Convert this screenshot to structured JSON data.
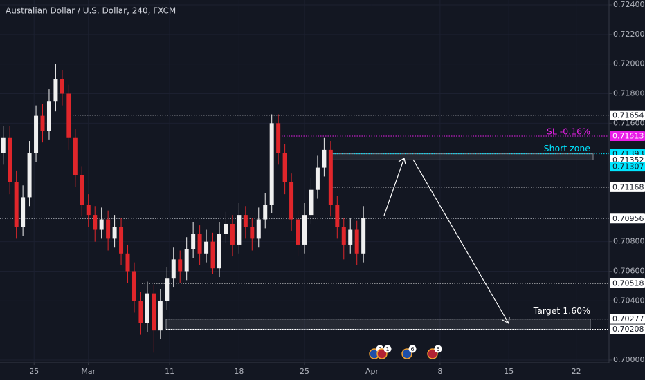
{
  "chart_data": {
    "type": "candlestick",
    "title": "Australian Dollar / U.S. Dollar, 240, FXCM",
    "x": [
      0.5,
      1.5,
      2.5,
      3.5,
      4.5,
      5.5,
      6.5,
      7.5,
      8.5,
      9.5,
      10.5,
      11.5,
      12.5,
      13.5,
      14.5,
      15.5,
      16.5,
      17.5,
      18.5,
      19.5,
      20.5,
      21.5,
      22.5,
      23.5,
      24.5,
      25.5,
      26.5,
      27.5,
      28.5,
      29.5,
      30.5,
      31.5,
      32.5,
      33.5,
      34.5,
      35.5,
      36.5,
      37.5,
      38.5,
      39.5,
      40.5,
      41.5,
      42.5,
      43.5,
      44.5,
      45.5,
      46.5,
      47.5,
      48.5,
      49.5,
      50.5,
      51.5,
      52.5,
      53.5,
      54.5,
      55.5
    ],
    "open": [
      0.714,
      0.715,
      0.712,
      0.709,
      0.711,
      0.714,
      0.7165,
      0.7155,
      0.7175,
      0.719,
      0.718,
      0.715,
      0.7125,
      0.7105,
      0.7098,
      0.7088,
      0.7095,
      0.7082,
      0.709,
      0.7072,
      0.706,
      0.704,
      0.7025,
      0.7045,
      0.702,
      0.704,
      0.7055,
      0.7068,
      0.706,
      0.7075,
      0.7085,
      0.7072,
      0.708,
      0.7062,
      0.7085,
      0.7092,
      0.7078,
      0.7098,
      0.709,
      0.7082,
      0.7095,
      0.7105,
      0.716,
      0.714,
      0.712,
      0.7095,
      0.7078,
      0.7098,
      0.7115,
      0.713,
      0.7142,
      0.7105,
      0.709,
      0.7078,
      0.7088,
      0.7072
    ],
    "high": [
      0.7158,
      0.7158,
      0.7128,
      0.7118,
      0.7148,
      0.7172,
      0.7173,
      0.7183,
      0.72,
      0.7196,
      0.7186,
      0.7156,
      0.7131,
      0.7112,
      0.7104,
      0.7103,
      0.7101,
      0.7098,
      0.7096,
      0.7078,
      0.7066,
      0.7046,
      0.7053,
      0.7051,
      0.7048,
      0.7063,
      0.7076,
      0.7074,
      0.7083,
      0.7093,
      0.7091,
      0.7088,
      0.7086,
      0.7093,
      0.71,
      0.7098,
      0.7106,
      0.7104,
      0.7096,
      0.7103,
      0.7113,
      0.7166,
      0.7166,
      0.7146,
      0.7126,
      0.7101,
      0.7106,
      0.7123,
      0.7138,
      0.715,
      0.7148,
      0.7111,
      0.7096,
      0.7096,
      0.7094,
      0.7104
    ],
    "low": [
      0.7132,
      0.7112,
      0.7082,
      0.7084,
      0.7104,
      0.7134,
      0.7147,
      0.7149,
      0.7168,
      0.7172,
      0.7142,
      0.7117,
      0.7097,
      0.709,
      0.708,
      0.7082,
      0.7074,
      0.7076,
      0.7064,
      0.7052,
      0.7032,
      0.7017,
      0.7019,
      0.7005,
      0.7014,
      0.7034,
      0.7049,
      0.7052,
      0.7054,
      0.7069,
      0.7064,
      0.7066,
      0.7058,
      0.7056,
      0.7079,
      0.707,
      0.7072,
      0.7082,
      0.7074,
      0.7076,
      0.7089,
      0.7099,
      0.7132,
      0.7112,
      0.7087,
      0.707,
      0.7072,
      0.7092,
      0.7109,
      0.7124,
      0.7097,
      0.7082,
      0.7068,
      0.7072,
      0.7064,
      0.7066
    ],
    "close": [
      0.715,
      0.712,
      0.709,
      0.711,
      0.714,
      0.7165,
      0.7155,
      0.7175,
      0.719,
      0.718,
      0.715,
      0.7125,
      0.7105,
      0.7098,
      0.7088,
      0.7095,
      0.7082,
      0.709,
      0.7072,
      0.706,
      0.704,
      0.7025,
      0.7045,
      0.702,
      0.704,
      0.7055,
      0.7068,
      0.706,
      0.7075,
      0.7085,
      0.7072,
      0.708,
      0.7062,
      0.7085,
      0.7092,
      0.7078,
      0.7098,
      0.709,
      0.7082,
      0.7095,
      0.7105,
      0.716,
      0.714,
      0.712,
      0.7095,
      0.7078,
      0.7098,
      0.7115,
      0.713,
      0.7142,
      0.7105,
      0.709,
      0.7078,
      0.7088,
      0.7072,
      0.7096
    ],
    "up_color": "#f0f0f0",
    "down_color": "#e0262b",
    "xlim": [
      0,
      93
    ],
    "xticks": [
      {
        "value": 5.2,
        "label": "25"
      },
      {
        "value": 13.5,
        "label": "Mar"
      },
      {
        "value": 25.9,
        "label": "11"
      },
      {
        "value": 36.5,
        "label": "18"
      },
      {
        "value": 46.5,
        "label": "25"
      },
      {
        "value": 56.8,
        "label": "Apr"
      },
      {
        "value": 67.2,
        "label": "8"
      },
      {
        "value": 77.7,
        "label": "15"
      },
      {
        "value": 88,
        "label": "22"
      }
    ],
    "ylim": [
      0.7,
      0.724
    ],
    "yticks": [
      {
        "value": 0.724,
        "label": "0.72400"
      },
      {
        "value": 0.722,
        "label": "0.72200"
      },
      {
        "value": 0.72,
        "label": "0.72000"
      },
      {
        "value": 0.718,
        "label": "0.71800"
      },
      {
        "value": 0.716,
        "label": "0.71600"
      },
      {
        "value": 0.708,
        "label": "0.70800"
      },
      {
        "value": 0.706,
        "label": "0.70600"
      },
      {
        "value": 0.704,
        "label": "0.70400"
      },
      {
        "value": 0.7,
        "label": "0.70000"
      }
    ],
    "grid": true,
    "levels": [
      {
        "value": 0.71654,
        "color": "#ffffff"
      },
      {
        "value": 0.71513,
        "color": "#e91ee8"
      },
      {
        "value": 0.71393,
        "color": "#00e5ff"
      },
      {
        "value": 0.71352,
        "color": "#00e5ff"
      },
      {
        "value": 0.71307,
        "color": "#00e5ff"
      },
      {
        "value": 0.71168,
        "color": "#ffffff"
      },
      {
        "value": 0.70956,
        "color": "#b2b5be"
      },
      {
        "value": 0.70518,
        "color": "#ffffff"
      },
      {
        "value": 0.70277,
        "color": "#ffffff"
      },
      {
        "value": 0.70208,
        "color": "#ffffff"
      }
    ],
    "annotations": [
      {
        "text": "SL -0.16%",
        "color": "#e91ee8"
      },
      {
        "text": "Short zone",
        "color": "#00e5ff"
      },
      {
        "text": "Target 1.60%",
        "color": "#ffffff"
      }
    ],
    "event_badges": [
      "2",
      "1",
      "6",
      "5"
    ]
  }
}
